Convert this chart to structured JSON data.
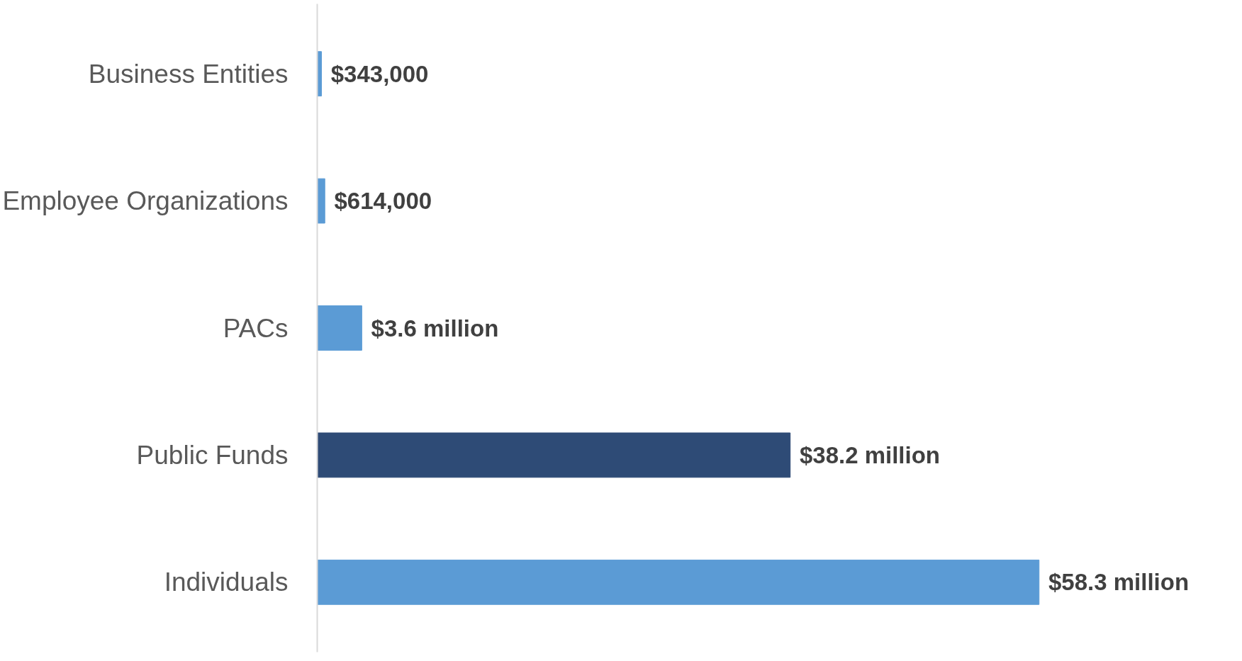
{
  "chart_data": {
    "type": "bar",
    "orientation": "horizontal",
    "categories": [
      "Business Entities",
      "Employee Organizations",
      "PACs",
      "Public Funds",
      "Individuals"
    ],
    "values": [
      343000,
      614000,
      3600000,
      38200000,
      58300000
    ],
    "colors": [
      "#5b9bd5",
      "#5b9bd5",
      "#5b9bd5",
      "#2e4b76",
      "#5b9bd5"
    ],
    "value_labels": [
      "$343,000",
      "$614,000",
      "$3.6 million",
      "$38.2 million",
      "$58.3 million"
    ],
    "grid": false
  }
}
